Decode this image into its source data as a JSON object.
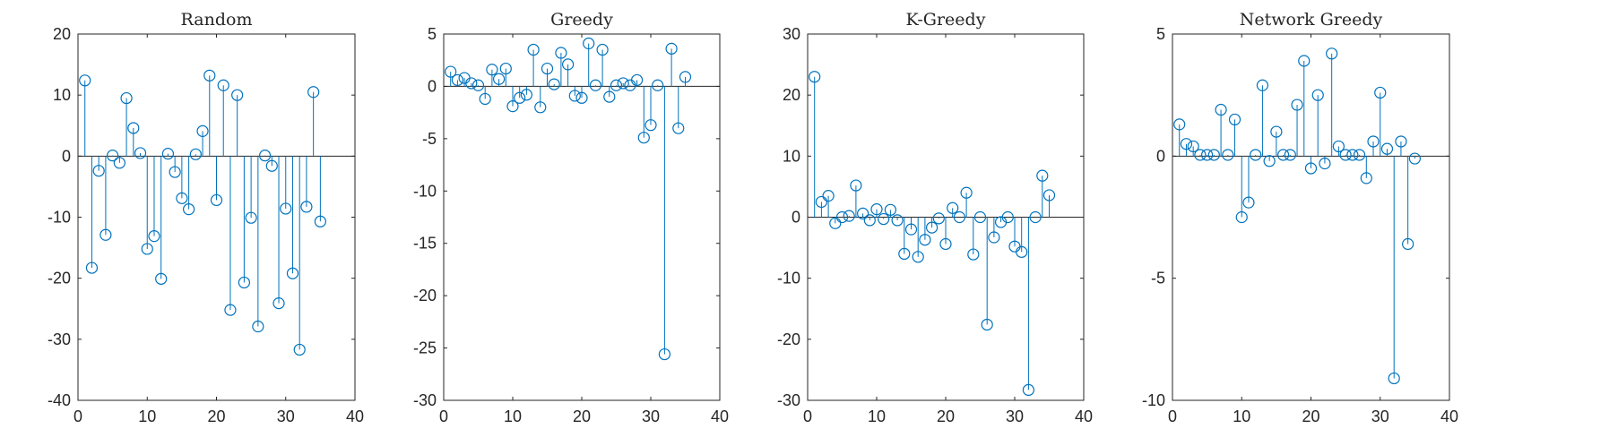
{
  "chart_data": [
    {
      "type": "stem",
      "title": "Random",
      "xlim": [
        0,
        40
      ],
      "ylim": [
        -40,
        20
      ],
      "xticks": [
        0,
        10,
        20,
        30,
        40
      ],
      "yticks": [
        -40,
        -30,
        -20,
        -10,
        0,
        10,
        20
      ],
      "x": [
        1,
        2,
        3,
        4,
        5,
        6,
        7,
        8,
        9,
        10,
        11,
        12,
        13,
        14,
        15,
        16,
        17,
        18,
        19,
        20,
        21,
        22,
        23,
        24,
        25,
        26,
        27,
        28,
        29,
        30,
        31,
        32,
        33,
        34,
        35
      ],
      "values": [
        12.4,
        -18.3,
        -2.4,
        -12.9,
        0.1,
        -1.1,
        9.5,
        4.6,
        0.5,
        -15.2,
        -13.1,
        -20.1,
        0.4,
        -2.6,
        -6.9,
        -8.7,
        0.3,
        4.1,
        13.2,
        -7.2,
        11.6,
        -25.2,
        10,
        -20.7,
        -10.1,
        -27.9,
        0.1,
        -1.6,
        -24.1,
        -8.6,
        -19.2,
        -31.7,
        -8.3,
        10.5,
        -10.7
      ]
    },
    {
      "type": "stem",
      "title": "Greedy",
      "xlim": [
        0,
        40
      ],
      "ylim": [
        -30,
        5
      ],
      "xticks": [
        0,
        10,
        20,
        30,
        40
      ],
      "yticks": [
        -30,
        -25,
        -20,
        -15,
        -10,
        -5,
        0,
        5
      ],
      "x": [
        1,
        2,
        3,
        4,
        5,
        6,
        7,
        8,
        9,
        10,
        11,
        12,
        13,
        14,
        15,
        16,
        17,
        18,
        19,
        20,
        21,
        22,
        23,
        24,
        25,
        26,
        27,
        28,
        29,
        30,
        31,
        32,
        33,
        34,
        35
      ],
      "values": [
        1.4,
        0.6,
        0.8,
        0.3,
        0.1,
        -1.2,
        1.6,
        0.7,
        1.7,
        -1.9,
        -1.1,
        -0.8,
        3.5,
        -2,
        1.7,
        0.2,
        3.2,
        2.1,
        -0.9,
        -1.1,
        4.1,
        0.1,
        3.5,
        -1,
        0.1,
        0.3,
        0.1,
        0.6,
        -4.9,
        -3.7,
        0.1,
        -25.6,
        3.6,
        -4,
        0.9
      ]
    },
    {
      "type": "stem",
      "title": "K-Greedy",
      "xlim": [
        0,
        40
      ],
      "ylim": [
        -30,
        30
      ],
      "xticks": [
        0,
        10,
        20,
        30,
        40
      ],
      "yticks": [
        -30,
        -20,
        -10,
        0,
        10,
        20,
        30
      ],
      "x": [
        1,
        2,
        3,
        4,
        5,
        6,
        7,
        8,
        9,
        10,
        11,
        12,
        13,
        14,
        15,
        16,
        17,
        18,
        19,
        20,
        21,
        22,
        23,
        24,
        25,
        26,
        27,
        28,
        29,
        30,
        31,
        32,
        33,
        34,
        35
      ],
      "values": [
        23,
        2.5,
        3.5,
        -1,
        0,
        0.2,
        5.2,
        0.6,
        -0.5,
        1.3,
        -0.3,
        1.2,
        -0.5,
        -6,
        -2,
        -6.5,
        -3.7,
        -1.7,
        -0.2,
        -4.4,
        1.5,
        0,
        4,
        -6.1,
        0,
        -17.6,
        -3.3,
        -0.8,
        0,
        -4.8,
        -5.7,
        -28.3,
        0,
        6.8,
        3.6
      ]
    },
    {
      "type": "stem",
      "title": "Network Greedy",
      "xlim": [
        0,
        40
      ],
      "ylim": [
        -10,
        5
      ],
      "xticks": [
        0,
        10,
        20,
        30,
        40
      ],
      "yticks": [
        -10,
        -5,
        0,
        5
      ],
      "x": [
        1,
        2,
        3,
        4,
        5,
        6,
        7,
        8,
        9,
        10,
        11,
        12,
        13,
        14,
        15,
        16,
        17,
        18,
        19,
        20,
        21,
        22,
        23,
        24,
        25,
        26,
        27,
        28,
        29,
        30,
        31,
        32,
        33,
        34,
        35
      ],
      "values": [
        1.3,
        0.5,
        0.4,
        0.05,
        0.05,
        0.05,
        1.9,
        0.05,
        1.5,
        -2.5,
        -1.9,
        0.05,
        2.9,
        -0.2,
        1,
        0.05,
        0.05,
        2.1,
        3.9,
        -0.5,
        2.5,
        -0.3,
        4.2,
        0.4,
        0.05,
        0.05,
        0.05,
        -0.9,
        0.6,
        2.6,
        0.3,
        -9.1,
        0.6,
        -3.6,
        -0.1
      ]
    }
  ]
}
